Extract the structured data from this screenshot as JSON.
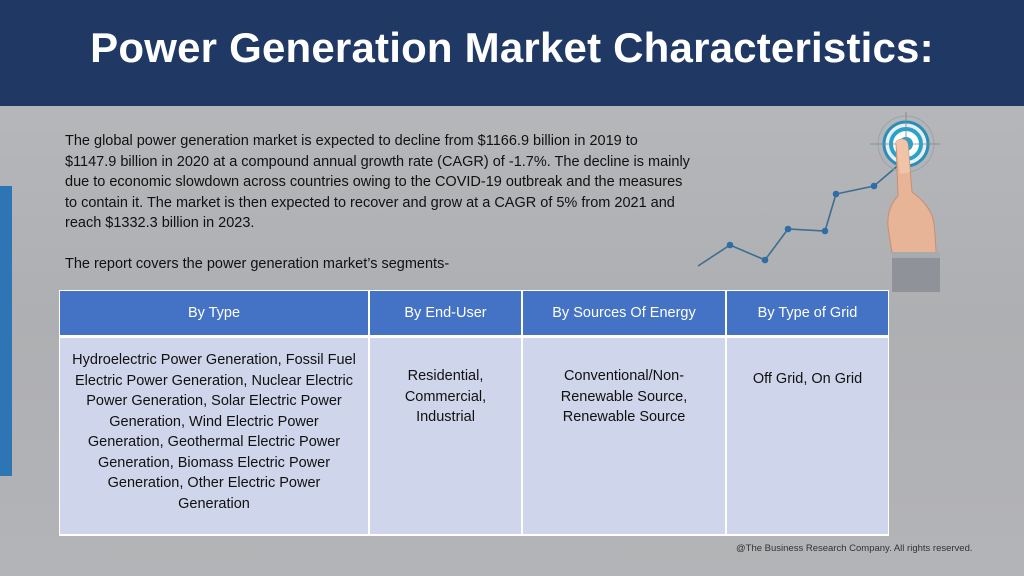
{
  "title": "Power Generation Market Characteristics:",
  "intro_text": "The global power generation market is expected to decline from $1166.9 billion in 2019 to $1147.9 billion in 2020 at a compound annual growth rate (CAGR) of -1.7%. The decline is mainly due to economic slowdown across countries owing to the COVID-19 outbreak and the measures to contain it. The market is then expected to recover and grow at a CAGR of 5% from 2021 and reach $1332.3 billion in 2023.",
  "segments_intro": "The report covers the power generation market’s segments-",
  "table": {
    "headers": [
      "By Type",
      "By End-User",
      "By Sources Of Energy",
      "By Type of Grid"
    ],
    "cells": [
      "Hydroelectric Power Generation, Fossil Fuel Electric Power Generation, Nuclear Electric Power Generation, Solar Electric Power Generation, Wind Electric Power Generation, Geothermal Electric Power Generation, Biomass Electric Power Generation, Other Electric Power Generation",
      "Residential, Commercial, Industrial",
      "Conventional/Non-Renewable Source, Renewable Source",
      "Off Grid, On Grid"
    ]
  },
  "footer": "@The Business Research Company. All rights reserved.",
  "colors": {
    "header_bg": "#1f3864",
    "table_header_bg": "#4472c4",
    "table_body_bg": "#cfd5ea",
    "accent_bar": "#2e75b6",
    "graphic_line": "#3b6f8f"
  },
  "icons": [
    "growth-line-graphic",
    "target-icon",
    "pointing-hand-icon"
  ]
}
